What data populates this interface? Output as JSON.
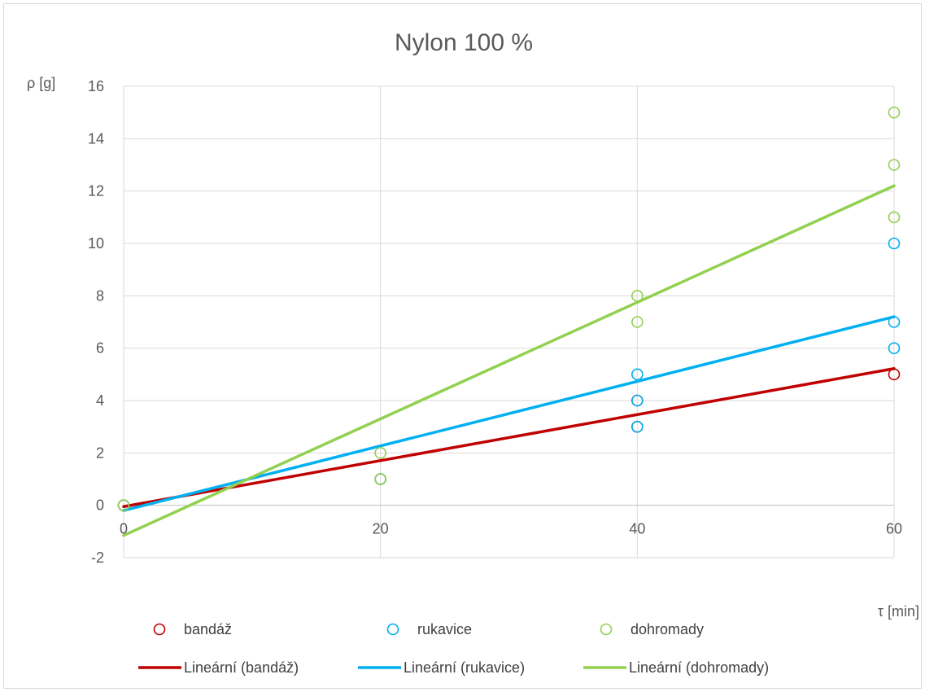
{
  "chart_data": {
    "type": "scatter",
    "title": "Nylon 100 %",
    "xlabel": "τ [min]",
    "ylabel": "ρ [g]",
    "xlim": [
      0,
      60
    ],
    "ylim": [
      -2,
      16
    ],
    "xticks": [
      0,
      20,
      40,
      60
    ],
    "yticks": [
      -2,
      0,
      2,
      4,
      6,
      8,
      10,
      12,
      14,
      16
    ],
    "grid": true,
    "legend_position": "bottom",
    "series": [
      {
        "name": "bandáž",
        "color": "#c00000",
        "marker": "open-circle",
        "points": [
          [
            0,
            0
          ],
          [
            20,
            1
          ],
          [
            40,
            3
          ],
          [
            40,
            4
          ],
          [
            60,
            5
          ]
        ]
      },
      {
        "name": "rukavice",
        "color": "#00b0f0",
        "marker": "open-circle",
        "points": [
          [
            0,
            0
          ],
          [
            20,
            1
          ],
          [
            40,
            3
          ],
          [
            40,
            4
          ],
          [
            40,
            5
          ],
          [
            60,
            6
          ],
          [
            60,
            7
          ],
          [
            60,
            10
          ]
        ]
      },
      {
        "name": "dohromady",
        "color": "#92d050",
        "marker": "open-circle",
        "points": [
          [
            0,
            0
          ],
          [
            20,
            1
          ],
          [
            20,
            2
          ],
          [
            40,
            7
          ],
          [
            40,
            8
          ],
          [
            60,
            11
          ],
          [
            60,
            13
          ],
          [
            60,
            15
          ]
        ]
      }
    ],
    "trendlines": [
      {
        "name": "Lineární (bandáž)",
        "color": "#c00000",
        "x": [
          0,
          60
        ],
        "y": [
          -0.05,
          5.22
        ]
      },
      {
        "name": "Lineární (rukavice)",
        "color": "#00b0f0",
        "x": [
          0,
          60
        ],
        "y": [
          -0.2,
          7.2
        ]
      },
      {
        "name": "Lineární (dohromady)",
        "color": "#92d050",
        "x": [
          0,
          60
        ],
        "y": [
          -1.15,
          12.2
        ]
      }
    ]
  }
}
